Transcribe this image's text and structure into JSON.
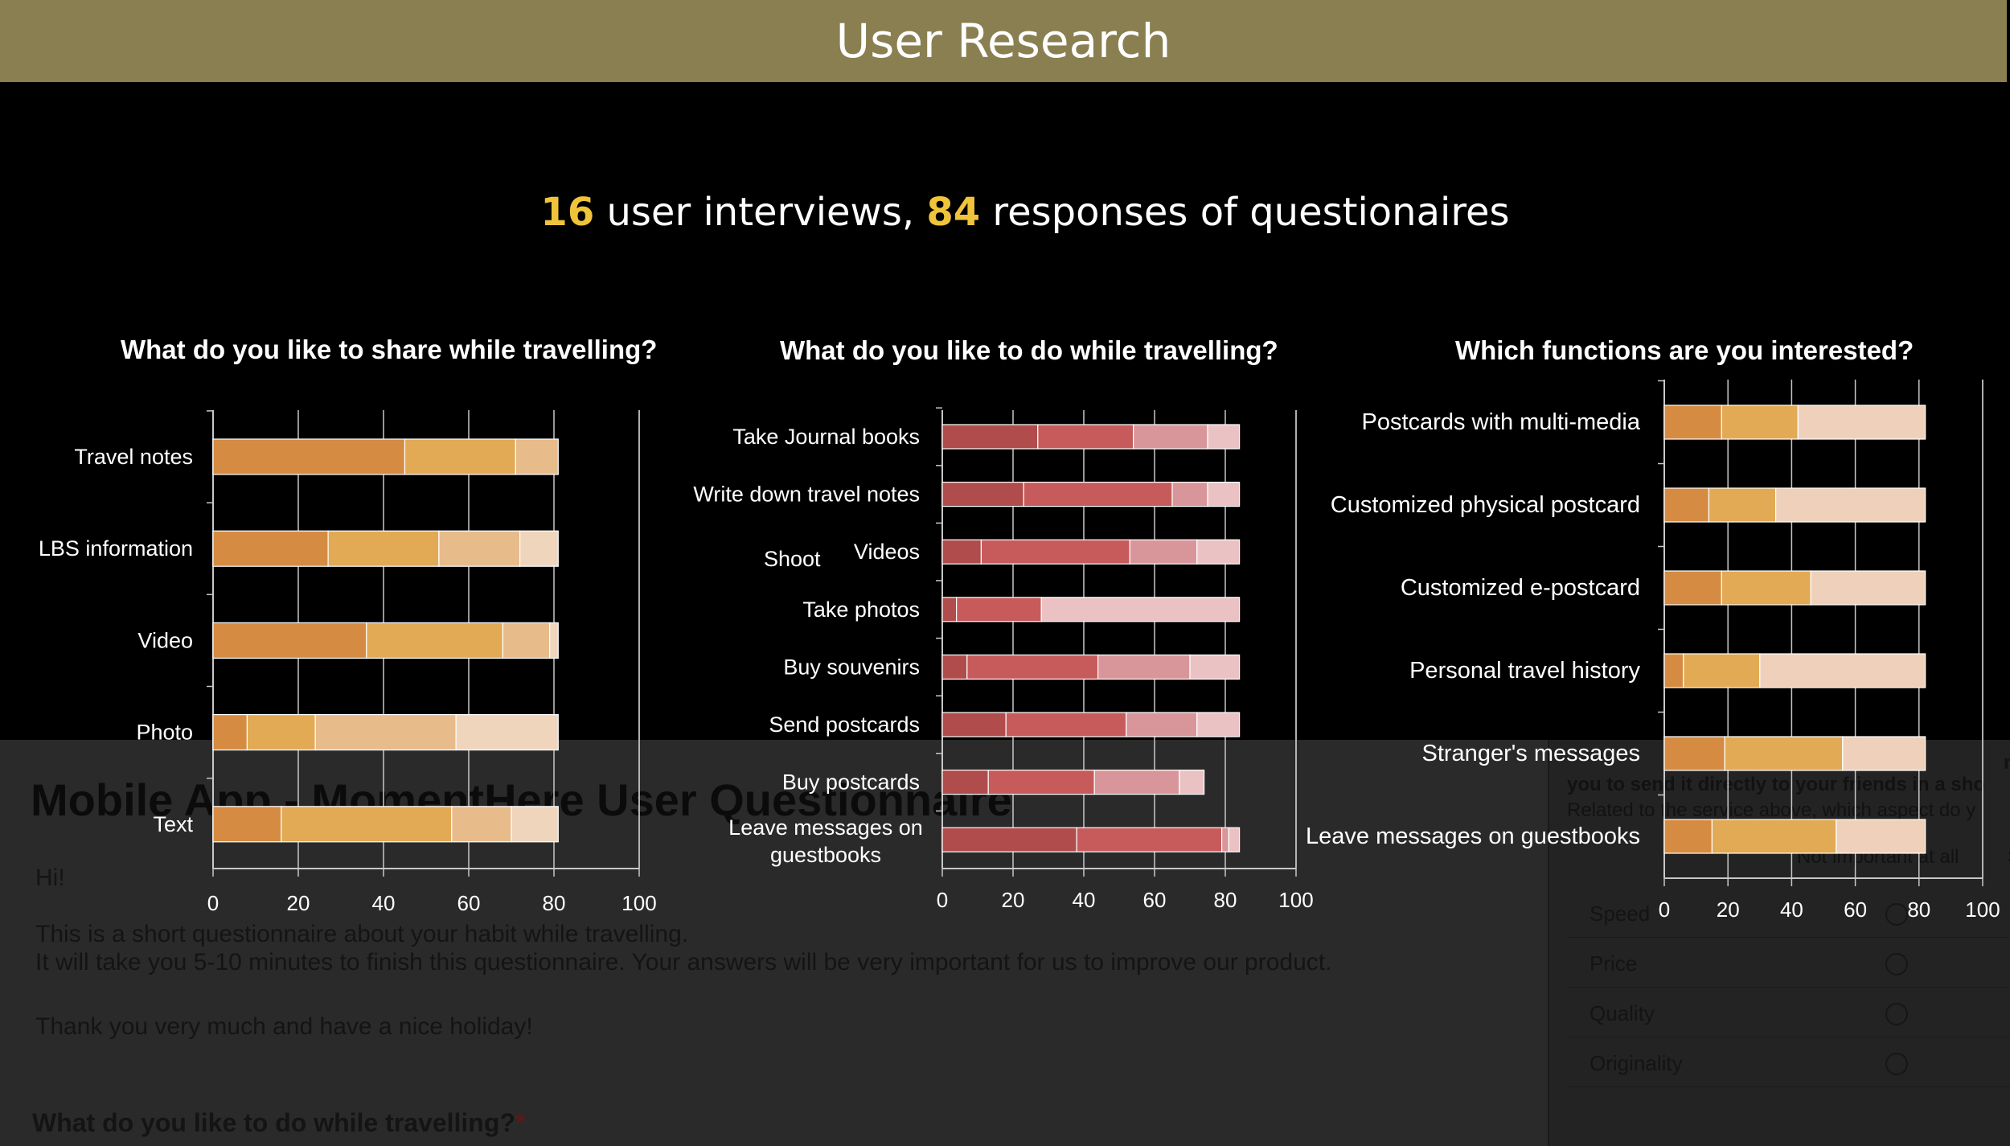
{
  "header": {
    "title": "User Research"
  },
  "summary": {
    "interviews": "16",
    "interviews_text": "user interviews,",
    "responses": "84",
    "responses_text": "responses of questionaires"
  },
  "background_doc": {
    "title": "Mobile App - MomentHere User Questionnaire",
    "greeting": "Hi!",
    "line1": "This is a short questionnaire about your habit while travelling.",
    "line2": "It will take you 5-10 minutes to finish this questionnaire. Your answers will be very important for us to improve our product.",
    "thanks": "Thank you very much and have a nice holiday!",
    "question": "What do you like to do while travelling?",
    "required_mark": "*"
  },
  "background_form": {
    "q_tail": "mise yo",
    "q_line2": "you to send it directly to your friends in a sho",
    "q_line3": "Related to the service above, which aspect do y",
    "scale_label": "Not important at all",
    "scale_label_tail": "S",
    "options": [
      "Speed",
      "Price",
      "Quality",
      "Originality"
    ]
  },
  "shoot_label": "Shoot",
  "colors": {
    "header": "#8a7f50",
    "highlight": "#f0c43a"
  },
  "chart_data": [
    {
      "type": "bar",
      "orientation": "horizontal",
      "stacked": true,
      "title": "What do you like to share while travelling?",
      "categories": [
        "Travel notes",
        "LBS information",
        "Video",
        "Photo",
        "Text"
      ],
      "series": [
        {
          "values": [
            45,
            27,
            36,
            8,
            16
          ],
          "color": "#d58c42"
        },
        {
          "values": [
            26,
            26,
            32,
            16,
            40
          ],
          "color": "#e2aa55"
        },
        {
          "values": [
            10,
            19,
            11,
            33,
            14
          ],
          "color": "#e8bb8b"
        },
        {
          "values": [
            0,
            9,
            2,
            24,
            11
          ],
          "color": "#f0d5bd"
        }
      ],
      "xlim": [
        0,
        100
      ],
      "xticks": [
        "0",
        "20",
        "40",
        "60",
        "80",
        "100"
      ],
      "grid": true
    },
    {
      "type": "bar",
      "orientation": "horizontal",
      "stacked": true,
      "title": "What do you like to do while travelling?",
      "categories": [
        "Take Journal books",
        "Write down travel notes",
        "Videos",
        "Take photos",
        "Buy souvenirs",
        "Send postcards",
        "Buy postcards",
        "Leave messages on guestbooks"
      ],
      "series": [
        {
          "values": [
            27,
            23,
            11,
            4,
            7,
            18,
            13,
            38
          ],
          "color": "#b04c4c"
        },
        {
          "values": [
            27,
            42,
            42,
            24,
            37,
            34,
            30,
            41
          ],
          "color": "#c75b5b"
        },
        {
          "values": [
            21,
            10,
            19,
            0,
            26,
            20,
            24,
            2
          ],
          "color": "#d9969a"
        },
        {
          "values": [
            9,
            9,
            12,
            56,
            14,
            12,
            7,
            3
          ],
          "color": "#ebc2c4"
        }
      ],
      "xlim": [
        0,
        100
      ],
      "xticks": [
        "0",
        "20",
        "40",
        "60",
        "80",
        "100"
      ],
      "grid": true
    },
    {
      "type": "bar",
      "orientation": "horizontal",
      "stacked": true,
      "title": "Which functions are you interested?",
      "categories": [
        "Postcards with multi-media",
        "Customized physical postcard",
        "Customized e-postcard",
        "Personal travel history",
        "Stranger's messages",
        "Leave messages on guestbooks"
      ],
      "series": [
        {
          "values": [
            18,
            14,
            18,
            6,
            19,
            15
          ],
          "color": "#d58c42"
        },
        {
          "values": [
            24,
            21,
            28,
            24,
            37,
            39
          ],
          "color": "#e2aa55"
        },
        {
          "values": [
            40,
            47,
            36,
            52,
            26,
            28
          ],
          "color": "#efd1bb"
        }
      ],
      "xlim": [
        0,
        100
      ],
      "xticks": [
        "0",
        "20",
        "40",
        "60",
        "80",
        "100"
      ],
      "grid": true
    }
  ]
}
